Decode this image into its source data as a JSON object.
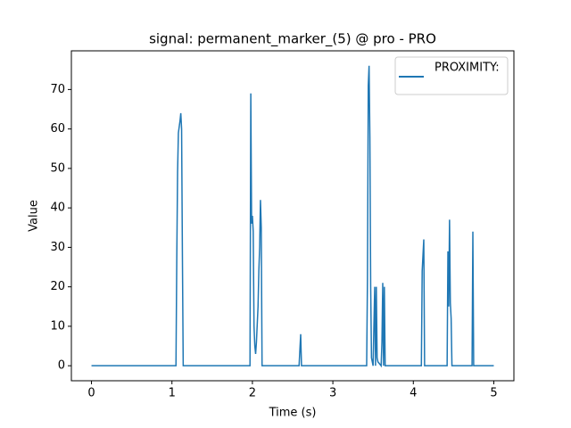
{
  "chart_data": {
    "type": "line",
    "title": "signal: permanent_marker_(5) @ pro - PRO",
    "xlabel": "Time (s)",
    "ylabel": "Value",
    "x": [
      0,
      1.05,
      1.06,
      1.07,
      1.08,
      1.1,
      1.11,
      1.12,
      1.13,
      1.14,
      1.97,
      1.98,
      1.99,
      2.0,
      2.01,
      2.02,
      2.03,
      2.04,
      2.05,
      2.07,
      2.08,
      2.09,
      2.1,
      2.11,
      2.12,
      2.58,
      2.59,
      2.6,
      2.61,
      3.42,
      3.43,
      3.44,
      3.45,
      3.46,
      3.47,
      3.48,
      3.5,
      3.52,
      3.53,
      3.54,
      3.55,
      3.56,
      3.6,
      3.61,
      3.62,
      3.63,
      3.64,
      3.65,
      4.1,
      4.11,
      4.12,
      4.13,
      4.14,
      4.42,
      4.43,
      4.44,
      4.45,
      4.46,
      4.47,
      4.48,
      4.73,
      4.74,
      4.75,
      5.0
    ],
    "series": [
      {
        "name": "PROXIMITY:",
        "color": "#1f77b4",
        "values": [
          0,
          0,
          27,
          49,
          59,
          62,
          64,
          60,
          28,
          0,
          0,
          69,
          36,
          38,
          34,
          10,
          5,
          3,
          6,
          15,
          24,
          30,
          42,
          35,
          0,
          0,
          4,
          8,
          0,
          0,
          22,
          71,
          76,
          58,
          20,
          2,
          0,
          20,
          0,
          20,
          2,
          1,
          0,
          6,
          21,
          0,
          20,
          0,
          0,
          24,
          28,
          32,
          0,
          0,
          29,
          15,
          37,
          16,
          12,
          0,
          0,
          34,
          0,
          0
        ]
      }
    ],
    "xlim": [
      -0.25,
      5.25
    ],
    "ylim": [
      -3.8,
      79.8
    ],
    "xticks": [
      0,
      1,
      2,
      3,
      4,
      5
    ],
    "yticks": [
      0,
      10,
      20,
      30,
      40,
      50,
      60,
      70
    ],
    "legend": "upper right"
  }
}
